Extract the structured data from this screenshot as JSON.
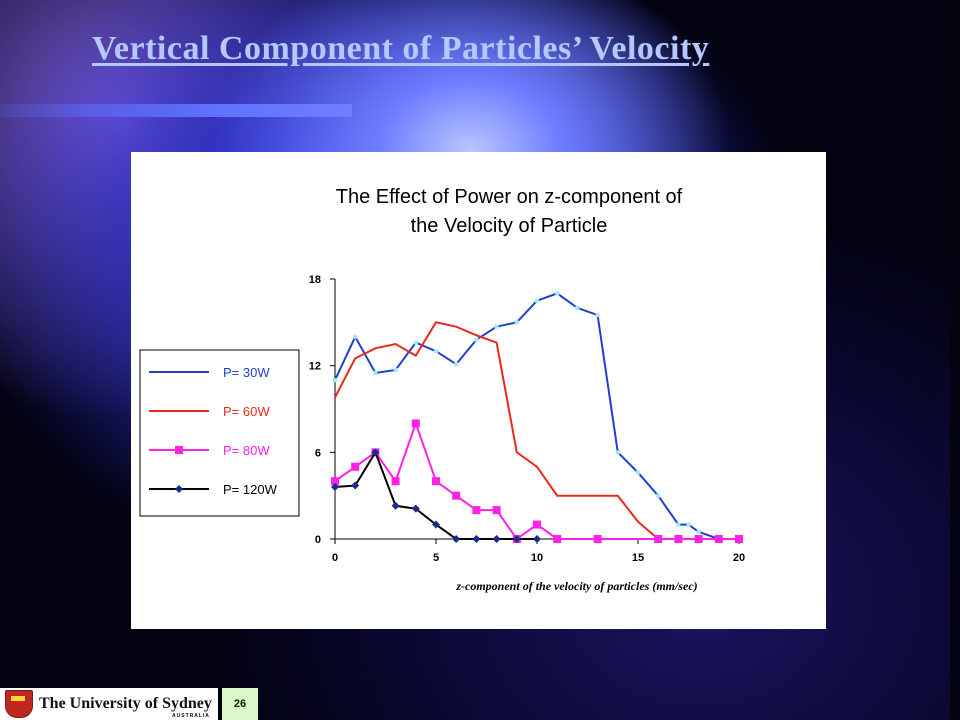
{
  "slide": {
    "title": "Vertical Component of Particles’ Velocity",
    "page_number": "26",
    "university": "The University of Sydney",
    "university_sub": "AUSTRALIA"
  },
  "colors": {
    "title": "#b5c8ff",
    "series_30": "#1f3fd1",
    "series_30_markers": "#9fe8f5",
    "series_60": "#e8291c",
    "series_80": "#ff22e6",
    "series_120": "#000000",
    "series_120_markers": "#1b2a8f"
  },
  "chart_data": {
    "type": "line",
    "title": "The Effect of Power on z-component of the Velocity of Particle",
    "title_lines": [
      "The Effect of Power on z-component of",
      "the Velocity of Particle"
    ],
    "xlabel": "z-component of the velocity of particles (mm/sec)",
    "ylabel": "",
    "xlim": [
      0,
      20
    ],
    "ylim": [
      0,
      18
    ],
    "xticks": [
      0,
      5,
      10,
      15,
      20
    ],
    "yticks": [
      0,
      6,
      12,
      18
    ],
    "grid": false,
    "legend_position": "left",
    "series": [
      {
        "name": "P= 30W",
        "color": "#1f3fd1",
        "marker": "small-square",
        "x": [
          0,
          1,
          2,
          3,
          4,
          5,
          6,
          7,
          8,
          9,
          10,
          11,
          12,
          13,
          14,
          15,
          16,
          17,
          17.5,
          18,
          19,
          20
        ],
        "y": [
          11,
          14,
          11.5,
          11.7,
          13.6,
          13,
          12.1,
          13.8,
          14.7,
          15,
          16.5,
          17,
          16,
          15.5,
          6,
          4.6,
          3,
          1,
          1,
          0.5,
          0,
          0
        ]
      },
      {
        "name": "P= 60W",
        "color": "#e8291c",
        "marker": "none",
        "x": [
          0,
          1,
          2,
          3,
          4,
          5,
          6,
          7,
          8,
          9,
          10,
          11,
          12,
          13,
          14,
          15,
          16,
          17,
          18,
          19,
          20
        ],
        "y": [
          9.8,
          12.5,
          13.2,
          13.5,
          12.7,
          15,
          14.7,
          14.1,
          13.6,
          6,
          5,
          3,
          3,
          3,
          3,
          1.2,
          0,
          0,
          0,
          0,
          0
        ]
      },
      {
        "name": "P= 80W",
        "color": "#ff22e6",
        "marker": "square",
        "x": [
          0,
          1,
          2,
          3,
          4,
          5,
          6,
          7,
          8,
          9,
          10,
          11,
          13,
          16,
          17,
          18,
          19,
          20
        ],
        "y": [
          4,
          5,
          6,
          4,
          8,
          4,
          3,
          2,
          2,
          0,
          1,
          0,
          0,
          0,
          0,
          0,
          0,
          0
        ]
      },
      {
        "name": "P= 120W",
        "color": "#000000",
        "marker": "diamond",
        "x": [
          0,
          1,
          2,
          3,
          4,
          5,
          6,
          7,
          8,
          9,
          10
        ],
        "y": [
          3.6,
          3.7,
          6,
          2.3,
          2.1,
          1,
          0,
          0,
          0,
          0,
          0
        ]
      }
    ]
  }
}
